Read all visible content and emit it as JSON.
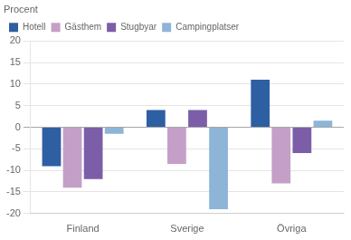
{
  "chart_data": {
    "type": "bar",
    "ylabel": "Procent",
    "categories": [
      "Finland",
      "Sverige",
      "Övriga"
    ],
    "series": [
      {
        "name": "Hotell",
        "color": "#2E5FA3",
        "values": [
          -9,
          4,
          11
        ]
      },
      {
        "name": "Gästhem",
        "color": "#C4A0C8",
        "values": [
          -14,
          -8.5,
          -13
        ]
      },
      {
        "name": "Stugbyar",
        "color": "#7B5EA7",
        "values": [
          -12,
          4,
          -6
        ]
      },
      {
        "name": "Campingplatser",
        "color": "#8EB4D8",
        "values": [
          -1.5,
          -19,
          1.5
        ]
      }
    ],
    "ylim": [
      -20,
      20
    ],
    "yticks": [
      -20,
      -15,
      -10,
      -5,
      0,
      5,
      10,
      15,
      20
    ],
    "grid": true,
    "legend": "upper left"
  }
}
